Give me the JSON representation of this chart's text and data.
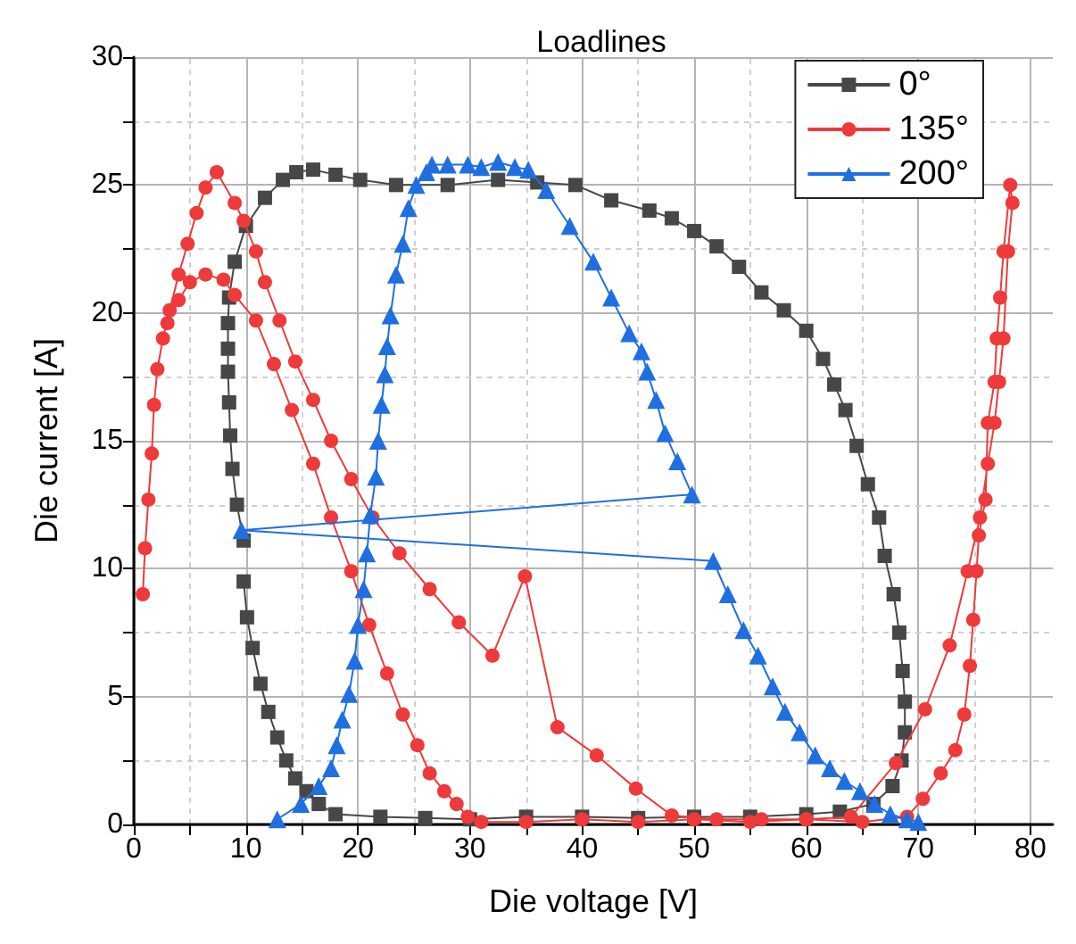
{
  "chart_data": {
    "type": "line",
    "title": "Loadlines",
    "xlabel": "Die voltage [V]",
    "ylabel": "Die current [A]",
    "xlim": [
      0,
      82
    ],
    "ylim": [
      0,
      30
    ],
    "xticks": [
      0,
      {
        "value": 5,
        "label": null
      },
      10,
      {
        "value": 15,
        "label": null
      },
      20,
      {
        "value": 25,
        "label": null
      },
      30,
      {
        "value": 35,
        "label": null
      },
      40,
      {
        "value": 45,
        "label": null
      },
      50,
      {
        "value": 55,
        "label": null
      },
      60,
      {
        "value": 65,
        "label": null
      },
      70,
      {
        "value": 75,
        "label": null
      },
      80
    ],
    "yticks": [
      0,
      {
        "value": 2.5,
        "label": null
      },
      5,
      {
        "value": 7.5,
        "label": null
      },
      10,
      {
        "value": 12.5,
        "label": null
      },
      15,
      {
        "value": 17.5,
        "label": null
      },
      20,
      {
        "value": 22.5,
        "label": null
      },
      25,
      {
        "value": 27.5,
        "label": null
      },
      30
    ],
    "grid": true,
    "legend": "top right",
    "line_style": "solid",
    "series": [
      {
        "name": "0°",
        "color": "#474747",
        "marker": "square",
        "x": [
          9.8,
          10.1,
          10.6,
          11.3,
          12,
          12.8,
          13.6,
          14.4,
          15.4,
          16.5,
          18,
          22,
          26,
          30,
          35,
          40,
          45,
          50,
          55,
          60,
          63,
          66,
          67.7,
          68.5,
          68.8,
          68.8,
          68.6,
          68.3,
          67.8,
          67,
          66.5,
          65.5,
          64.5,
          63.5,
          62.5,
          61.5,
          60,
          58,
          56,
          54,
          52,
          50,
          48,
          46,
          42.6,
          39.4,
          36,
          32.5,
          28,
          23.4,
          20.2,
          18,
          16,
          14.5,
          13.3,
          11.7,
          10,
          9,
          8.5,
          8.4,
          8.4,
          8.4,
          8.5,
          8.6,
          8.8,
          9.2,
          9.8
        ],
        "values": [
          9.5,
          8.1,
          6.9,
          5.5,
          4.4,
          3.4,
          2.5,
          1.8,
          1.3,
          0.8,
          0.4,
          0.3,
          0.25,
          0.2,
          0.3,
          0.3,
          0.25,
          0.3,
          0.3,
          0.4,
          0.5,
          0.8,
          1.5,
          2.5,
          3.6,
          4.8,
          6,
          7.5,
          9,
          10.5,
          12,
          13.3,
          14.8,
          16.2,
          17.2,
          18.2,
          19.3,
          20.1,
          20.8,
          21.8,
          22.6,
          23.2,
          23.7,
          24,
          24.4,
          25,
          25.1,
          25.2,
          25,
          25,
          25.2,
          25.4,
          25.6,
          25.5,
          25.2,
          24.5,
          23.4,
          22,
          20.6,
          19.6,
          18.6,
          17.7,
          16.5,
          15.2,
          13.9,
          12.5,
          11.1
        ]
      },
      {
        "name": "135°",
        "color": "#ee3a3a",
        "marker": "circle",
        "x": [
          0.8,
          1,
          1.3,
          1.6,
          1.8,
          2.1,
          2.6,
          3.2,
          4,
          4.8,
          5.6,
          6.4,
          7.4,
          9,
          9.8,
          10.9,
          11.7,
          13,
          14.4,
          16,
          17.6,
          19.4,
          21.3,
          23.7,
          26.4,
          29,
          32,
          34.9,
          37.8,
          41.3,
          44.8,
          48,
          52,
          56,
          60,
          64,
          68,
          70.6,
          72.8,
          74.4,
          75.5,
          76.2,
          76.8,
          77.2,
          77.6,
          78,
          78.4,
          78.2,
          77.6,
          77.3,
          77,
          76.8,
          76.2,
          76,
          75.4,
          75.2,
          74.9,
          74.6,
          74.1,
          73.3,
          72,
          70.4,
          69,
          65,
          60,
          55,
          50,
          45,
          40,
          35,
          31,
          29.8,
          28.8,
          27.7,
          26.4,
          25.3,
          24,
          22.6,
          21,
          19.4,
          17.6,
          16,
          14.1,
          12.5,
          10.9,
          9,
          8,
          6.4,
          5,
          4,
          3
        ],
        "values": [
          9,
          10.8,
          12.7,
          14.5,
          16.4,
          17.8,
          19,
          20.1,
          21.5,
          22.7,
          23.9,
          24.9,
          25.5,
          24.3,
          23.6,
          22.4,
          21.2,
          19.7,
          18.1,
          16.6,
          15,
          13.5,
          12,
          10.6,
          9.2,
          7.9,
          6.6,
          9.7,
          3.8,
          2.7,
          1.4,
          0.35,
          0.2,
          0.2,
          0.2,
          0.3,
          2.4,
          4.5,
          7,
          9.9,
          12,
          14.1,
          15.7,
          17.3,
          19,
          22.4,
          24.3,
          25,
          22.4,
          20.6,
          19,
          17.3,
          15.7,
          12.7,
          11.3,
          9.9,
          8,
          6.2,
          4.3,
          2.9,
          2,
          1,
          0.3,
          0.1,
          0.2,
          0.1,
          0.2,
          0.1,
          0.2,
          0.1,
          0.1,
          0.3,
          0.8,
          1.3,
          2,
          3.1,
          4.3,
          5.9,
          7.8,
          9.9,
          12,
          14.1,
          16.2,
          18,
          19.7,
          20.7,
          21.3,
          21.5,
          21.2,
          20.5,
          19.6
        ]
      },
      {
        "name": "200°",
        "color": "#1f6fe0",
        "marker": "triangle",
        "x": [
          12.8,
          14.9,
          16.5,
          17.6,
          18.1,
          18.6,
          19.2,
          19.7,
          20,
          20.5,
          20.8,
          21.1,
          21.6,
          21.8,
          22.1,
          22.4,
          22.6,
          22.9,
          23.4,
          24,
          24.5,
          25.2,
          26.1,
          26.6,
          28,
          29.8,
          31,
          32.5,
          34,
          35.2,
          36.8,
          38.9,
          41,
          42.6,
          44.2,
          45.3,
          45.8,
          46.6,
          47.4,
          48.5,
          49.8,
          9.6,
          51.7,
          53,
          54.4,
          55.7,
          57,
          58.1,
          59.4,
          60.8,
          62.1,
          63.4,
          64.8,
          66.1,
          67.5,
          69,
          70
        ],
        "values": [
          0.2,
          0.8,
          1.5,
          2.2,
          3.1,
          4.1,
          5.1,
          6.4,
          7.8,
          9.2,
          10.6,
          12.1,
          13.6,
          15,
          16.4,
          17.6,
          18.7,
          19.9,
          21.5,
          22.7,
          24.1,
          25,
          25.5,
          25.8,
          25.8,
          25.8,
          25.7,
          25.9,
          25.7,
          25.6,
          24.8,
          23.4,
          22,
          20.6,
          19.2,
          18.5,
          17.7,
          16.6,
          15.3,
          14.2,
          12.9,
          11.5,
          10.3,
          9,
          7.6,
          6.6,
          5.4,
          4.4,
          3.6,
          2.7,
          2.2,
          1.7,
          1.3,
          0.8,
          0.4,
          0.2,
          0.1
        ]
      }
    ]
  }
}
